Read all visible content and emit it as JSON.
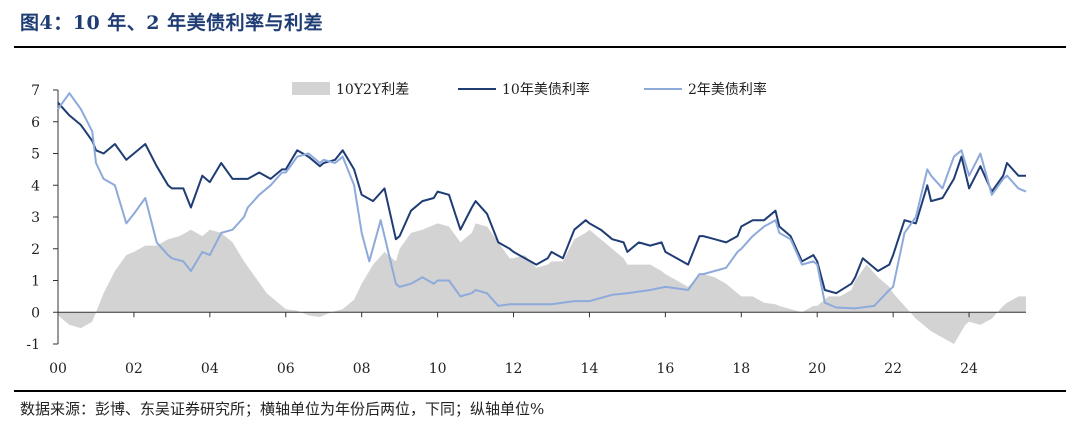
{
  "header": {
    "title": "图4：10 年、2 年美债利率与利差"
  },
  "footer": {
    "source": "数据来源：彭博、东吴证券研究所；横轴单位为年份后两位，下同；纵轴单位%"
  },
  "chart_data": {
    "type": "line",
    "ylim": [
      -1,
      7
    ],
    "y_ticks": [
      "7",
      "6",
      "5",
      "4",
      "3",
      "2",
      "1",
      "0",
      "-1"
    ],
    "x_ticks": [
      "00",
      "02",
      "04",
      "06",
      "08",
      "10",
      "12",
      "14",
      "16",
      "18",
      "20",
      "22",
      "24"
    ],
    "xlim": [
      2000,
      2025.5
    ],
    "legend_placement": "top",
    "series": [
      {
        "name": "10Y2Y利差",
        "kind": "area",
        "color": "#d3d3d3",
        "points": [
          [
            2000.0,
            -0.1
          ],
          [
            2000.3,
            -0.4
          ],
          [
            2000.6,
            -0.5
          ],
          [
            2000.9,
            -0.3
          ],
          [
            2001.0,
            0.0
          ],
          [
            2001.2,
            0.6
          ],
          [
            2001.5,
            1.3
          ],
          [
            2001.8,
            1.8
          ],
          [
            2002.0,
            1.9
          ],
          [
            2002.3,
            2.1
          ],
          [
            2002.6,
            2.1
          ],
          [
            2002.9,
            2.3
          ],
          [
            2003.2,
            2.4
          ],
          [
            2003.5,
            2.6
          ],
          [
            2003.8,
            2.4
          ],
          [
            2004.0,
            2.6
          ],
          [
            2004.3,
            2.5
          ],
          [
            2004.6,
            2.2
          ],
          [
            2004.9,
            1.6
          ],
          [
            2005.2,
            1.1
          ],
          [
            2005.5,
            0.6
          ],
          [
            2005.8,
            0.3
          ],
          [
            2006.0,
            0.1
          ],
          [
            2006.3,
            0.05
          ],
          [
            2006.6,
            -0.1
          ],
          [
            2006.9,
            -0.15
          ],
          [
            2007.2,
            0.0
          ],
          [
            2007.5,
            0.1
          ],
          [
            2007.8,
            0.4
          ],
          [
            2008.0,
            0.9
          ],
          [
            2008.3,
            1.5
          ],
          [
            2008.6,
            1.9
          ],
          [
            2008.9,
            1.6
          ],
          [
            2009.0,
            2.0
          ],
          [
            2009.3,
            2.5
          ],
          [
            2009.6,
            2.6
          ],
          [
            2010.0,
            2.8
          ],
          [
            2010.3,
            2.7
          ],
          [
            2010.6,
            2.2
          ],
          [
            2010.9,
            2.5
          ],
          [
            2011.0,
            2.8
          ],
          [
            2011.3,
            2.7
          ],
          [
            2011.6,
            2.2
          ],
          [
            2011.9,
            1.7
          ],
          [
            2012.0,
            1.7
          ],
          [
            2012.3,
            1.8
          ],
          [
            2012.6,
            1.4
          ],
          [
            2012.9,
            1.5
          ],
          [
            2013.0,
            1.6
          ],
          [
            2013.3,
            1.6
          ],
          [
            2013.6,
            2.3
          ],
          [
            2013.9,
            2.5
          ],
          [
            2014.0,
            2.6
          ],
          [
            2014.3,
            2.3
          ],
          [
            2014.6,
            2.0
          ],
          [
            2014.9,
            1.7
          ],
          [
            2015.0,
            1.5
          ],
          [
            2015.3,
            1.5
          ],
          [
            2015.6,
            1.5
          ],
          [
            2015.9,
            1.3
          ],
          [
            2016.0,
            1.2
          ],
          [
            2016.3,
            1.0
          ],
          [
            2016.6,
            0.8
          ],
          [
            2016.9,
            1.2
          ],
          [
            2017.0,
            1.2
          ],
          [
            2017.3,
            1.1
          ],
          [
            2017.6,
            0.9
          ],
          [
            2017.9,
            0.6
          ],
          [
            2018.0,
            0.5
          ],
          [
            2018.3,
            0.5
          ],
          [
            2018.6,
            0.3
          ],
          [
            2018.9,
            0.25
          ],
          [
            2019.0,
            0.2
          ],
          [
            2019.3,
            0.1
          ],
          [
            2019.6,
            0.0
          ],
          [
            2019.9,
            0.2
          ],
          [
            2020.0,
            0.2
          ],
          [
            2020.3,
            0.5
          ],
          [
            2020.6,
            0.5
          ],
          [
            2020.9,
            0.7
          ],
          [
            2021.0,
            1.0
          ],
          [
            2021.3,
            1.5
          ],
          [
            2021.6,
            1.1
          ],
          [
            2021.9,
            0.8
          ],
          [
            2022.0,
            0.6
          ],
          [
            2022.3,
            0.2
          ],
          [
            2022.6,
            -0.2
          ],
          [
            2022.9,
            -0.5
          ],
          [
            2023.0,
            -0.6
          ],
          [
            2023.3,
            -0.8
          ],
          [
            2023.6,
            -1.0
          ],
          [
            2023.9,
            -0.4
          ],
          [
            2024.0,
            -0.3
          ],
          [
            2024.3,
            -0.4
          ],
          [
            2024.6,
            -0.2
          ],
          [
            2024.9,
            0.2
          ],
          [
            2025.0,
            0.3
          ],
          [
            2025.3,
            0.5
          ],
          [
            2025.5,
            0.5
          ]
        ]
      },
      {
        "name": "10年美债利率",
        "kind": "line",
        "color": "#1f3d74",
        "points": [
          [
            2000.0,
            6.6
          ],
          [
            2000.3,
            6.2
          ],
          [
            2000.6,
            5.9
          ],
          [
            2000.9,
            5.4
          ],
          [
            2001.0,
            5.1
          ],
          [
            2001.2,
            5.0
          ],
          [
            2001.5,
            5.3
          ],
          [
            2001.8,
            4.8
          ],
          [
            2002.0,
            5.0
          ],
          [
            2002.3,
            5.3
          ],
          [
            2002.6,
            4.6
          ],
          [
            2002.9,
            4.0
          ],
          [
            2003.0,
            3.9
          ],
          [
            2003.3,
            3.9
          ],
          [
            2003.5,
            3.3
          ],
          [
            2003.8,
            4.3
          ],
          [
            2004.0,
            4.1
          ],
          [
            2004.3,
            4.7
          ],
          [
            2004.6,
            4.2
          ],
          [
            2004.9,
            4.2
          ],
          [
            2005.0,
            4.2
          ],
          [
            2005.3,
            4.4
          ],
          [
            2005.6,
            4.2
          ],
          [
            2005.9,
            4.5
          ],
          [
            2006.0,
            4.5
          ],
          [
            2006.3,
            5.1
          ],
          [
            2006.6,
            4.9
          ],
          [
            2006.9,
            4.6
          ],
          [
            2007.0,
            4.7
          ],
          [
            2007.3,
            4.8
          ],
          [
            2007.5,
            5.1
          ],
          [
            2007.8,
            4.5
          ],
          [
            2008.0,
            3.7
          ],
          [
            2008.3,
            3.5
          ],
          [
            2008.6,
            3.9
          ],
          [
            2008.9,
            2.3
          ],
          [
            2009.0,
            2.4
          ],
          [
            2009.3,
            3.2
          ],
          [
            2009.6,
            3.5
          ],
          [
            2009.9,
            3.6
          ],
          [
            2010.0,
            3.8
          ],
          [
            2010.3,
            3.7
          ],
          [
            2010.6,
            2.6
          ],
          [
            2010.9,
            3.3
          ],
          [
            2011.0,
            3.5
          ],
          [
            2011.3,
            3.1
          ],
          [
            2011.6,
            2.2
          ],
          [
            2011.9,
            2.0
          ],
          [
            2012.0,
            1.9
          ],
          [
            2012.3,
            1.7
          ],
          [
            2012.6,
            1.5
          ],
          [
            2012.9,
            1.7
          ],
          [
            2013.0,
            1.9
          ],
          [
            2013.3,
            1.7
          ],
          [
            2013.6,
            2.6
          ],
          [
            2013.9,
            2.9
          ],
          [
            2014.0,
            2.8
          ],
          [
            2014.3,
            2.6
          ],
          [
            2014.6,
            2.3
          ],
          [
            2014.9,
            2.2
          ],
          [
            2015.0,
            1.9
          ],
          [
            2015.3,
            2.2
          ],
          [
            2015.6,
            2.1
          ],
          [
            2015.9,
            2.2
          ],
          [
            2016.0,
            1.9
          ],
          [
            2016.3,
            1.7
          ],
          [
            2016.6,
            1.5
          ],
          [
            2016.9,
            2.4
          ],
          [
            2017.0,
            2.4
          ],
          [
            2017.3,
            2.3
          ],
          [
            2017.6,
            2.2
          ],
          [
            2017.9,
            2.4
          ],
          [
            2018.0,
            2.7
          ],
          [
            2018.3,
            2.9
          ],
          [
            2018.6,
            2.9
          ],
          [
            2018.9,
            3.2
          ],
          [
            2019.0,
            2.7
          ],
          [
            2019.3,
            2.4
          ],
          [
            2019.6,
            1.6
          ],
          [
            2019.9,
            1.8
          ],
          [
            2020.0,
            1.6
          ],
          [
            2020.2,
            0.7
          ],
          [
            2020.5,
            0.6
          ],
          [
            2020.9,
            0.9
          ],
          [
            2021.0,
            1.1
          ],
          [
            2021.2,
            1.7
          ],
          [
            2021.6,
            1.3
          ],
          [
            2021.9,
            1.5
          ],
          [
            2022.0,
            1.8
          ],
          [
            2022.3,
            2.9
          ],
          [
            2022.6,
            2.8
          ],
          [
            2022.9,
            4.0
          ],
          [
            2023.0,
            3.5
          ],
          [
            2023.3,
            3.6
          ],
          [
            2023.6,
            4.2
          ],
          [
            2023.8,
            4.9
          ],
          [
            2024.0,
            3.9
          ],
          [
            2024.3,
            4.6
          ],
          [
            2024.6,
            3.8
          ],
          [
            2024.9,
            4.3
          ],
          [
            2025.0,
            4.7
          ],
          [
            2025.3,
            4.3
          ],
          [
            2025.5,
            4.3
          ]
        ]
      },
      {
        "name": "2年美债利率",
        "kind": "line",
        "color": "#8eaadb",
        "points": [
          [
            2000.0,
            6.4
          ],
          [
            2000.3,
            6.9
          ],
          [
            2000.6,
            6.4
          ],
          [
            2000.9,
            5.7
          ],
          [
            2001.0,
            4.7
          ],
          [
            2001.2,
            4.2
          ],
          [
            2001.5,
            4.0
          ],
          [
            2001.8,
            2.8
          ],
          [
            2002.0,
            3.1
          ],
          [
            2002.3,
            3.6
          ],
          [
            2002.6,
            2.2
          ],
          [
            2002.9,
            1.8
          ],
          [
            2003.0,
            1.7
          ],
          [
            2003.3,
            1.6
          ],
          [
            2003.5,
            1.3
          ],
          [
            2003.8,
            1.9
          ],
          [
            2004.0,
            1.8
          ],
          [
            2004.3,
            2.5
          ],
          [
            2004.6,
            2.6
          ],
          [
            2004.9,
            3.0
          ],
          [
            2005.0,
            3.3
          ],
          [
            2005.3,
            3.7
          ],
          [
            2005.6,
            4.0
          ],
          [
            2005.9,
            4.4
          ],
          [
            2006.0,
            4.4
          ],
          [
            2006.3,
            4.9
          ],
          [
            2006.6,
            5.0
          ],
          [
            2006.9,
            4.7
          ],
          [
            2007.0,
            4.8
          ],
          [
            2007.3,
            4.7
          ],
          [
            2007.5,
            4.9
          ],
          [
            2007.8,
            4.0
          ],
          [
            2008.0,
            2.5
          ],
          [
            2008.2,
            1.6
          ],
          [
            2008.5,
            2.9
          ],
          [
            2008.9,
            0.9
          ],
          [
            2009.0,
            0.8
          ],
          [
            2009.3,
            0.9
          ],
          [
            2009.6,
            1.1
          ],
          [
            2009.9,
            0.9
          ],
          [
            2010.0,
            1.0
          ],
          [
            2010.3,
            1.0
          ],
          [
            2010.6,
            0.5
          ],
          [
            2010.9,
            0.6
          ],
          [
            2011.0,
            0.7
          ],
          [
            2011.3,
            0.6
          ],
          [
            2011.6,
            0.2
          ],
          [
            2011.9,
            0.25
          ],
          [
            2012.0,
            0.25
          ],
          [
            2012.6,
            0.25
          ],
          [
            2013.0,
            0.25
          ],
          [
            2013.6,
            0.35
          ],
          [
            2014.0,
            0.35
          ],
          [
            2014.6,
            0.55
          ],
          [
            2015.0,
            0.6
          ],
          [
            2015.6,
            0.7
          ],
          [
            2016.0,
            0.8
          ],
          [
            2016.6,
            0.7
          ],
          [
            2016.9,
            1.2
          ],
          [
            2017.0,
            1.2
          ],
          [
            2017.3,
            1.3
          ],
          [
            2017.6,
            1.4
          ],
          [
            2017.9,
            1.9
          ],
          [
            2018.0,
            2.0
          ],
          [
            2018.3,
            2.4
          ],
          [
            2018.6,
            2.7
          ],
          [
            2018.9,
            2.9
          ],
          [
            2019.0,
            2.5
          ],
          [
            2019.3,
            2.3
          ],
          [
            2019.6,
            1.5
          ],
          [
            2019.9,
            1.6
          ],
          [
            2020.0,
            1.5
          ],
          [
            2020.2,
            0.3
          ],
          [
            2020.5,
            0.15
          ],
          [
            2021.0,
            0.12
          ],
          [
            2021.5,
            0.2
          ],
          [
            2021.9,
            0.7
          ],
          [
            2022.0,
            0.8
          ],
          [
            2022.3,
            2.5
          ],
          [
            2022.6,
            3.0
          ],
          [
            2022.9,
            4.5
          ],
          [
            2023.0,
            4.3
          ],
          [
            2023.3,
            3.9
          ],
          [
            2023.6,
            4.9
          ],
          [
            2023.8,
            5.1
          ],
          [
            2024.0,
            4.3
          ],
          [
            2024.3,
            5.0
          ],
          [
            2024.6,
            3.7
          ],
          [
            2024.9,
            4.2
          ],
          [
            2025.0,
            4.3
          ],
          [
            2025.3,
            3.9
          ],
          [
            2025.5,
            3.8
          ]
        ]
      }
    ]
  }
}
